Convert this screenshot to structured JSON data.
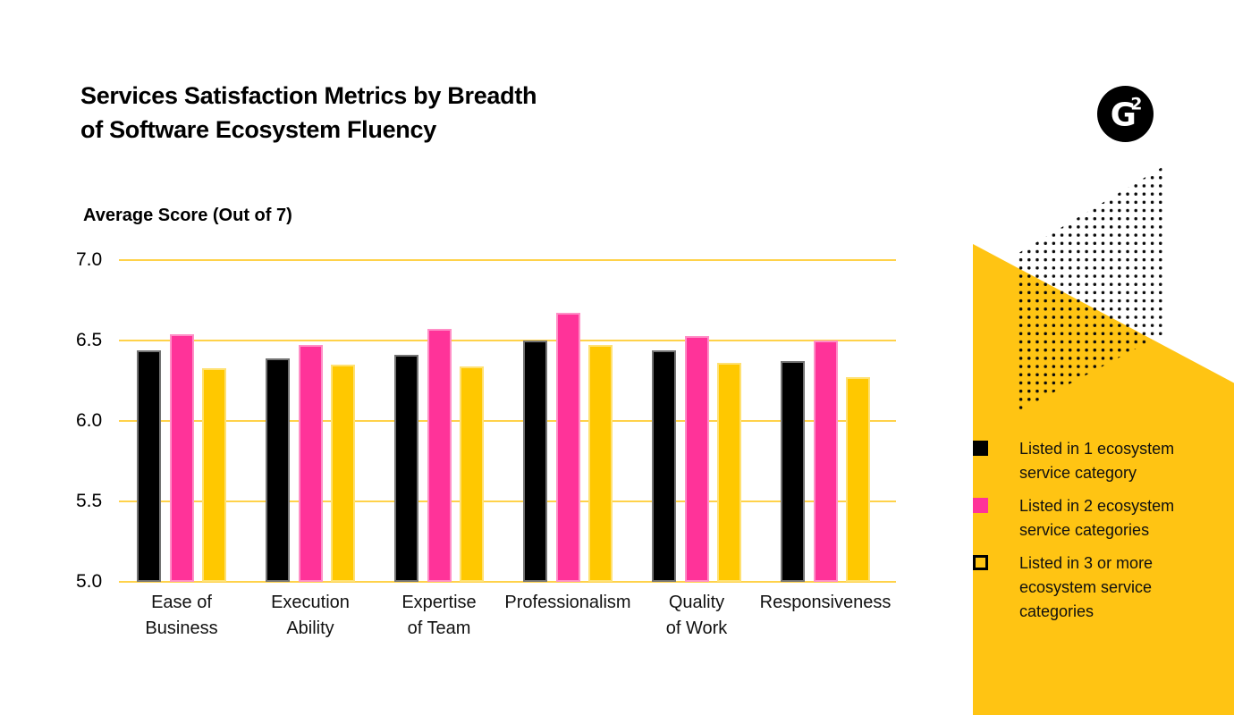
{
  "title": "Services Satisfaction Metrics by Breadth\nof Software Ecosystem Fluency",
  "axis_title": "Average Score (Out of 7)",
  "logo": {
    "label": "G2 logo",
    "letter": "G",
    "superscript": "2"
  },
  "chart_data": {
    "type": "bar",
    "title": "Services Satisfaction Metrics by Breadth of Software Ecosystem Fluency",
    "ylabel": "Average Score (Out of 7)",
    "ylim": [
      5.0,
      7.0
    ],
    "yticks": [
      7.0,
      6.5,
      6.0,
      5.5,
      5.0
    ],
    "grid": true,
    "legend_position": "right",
    "categories": [
      "Ease of Business",
      "Execution Ability",
      "Expertise of Team",
      "Professionalism",
      "Quality of Work",
      "Responsiveness"
    ],
    "categories_wrapped": [
      "Ease of\nBusiness",
      "Execution\nAbility",
      "Expertise\nof Team",
      "Professionalism",
      "Quality\nof Work",
      "Responsiveness"
    ],
    "series": [
      {
        "name": "Listed in 1 ecosystem service category",
        "color": "#000000",
        "values": [
          6.44,
          6.39,
          6.41,
          6.5,
          6.44,
          6.37
        ]
      },
      {
        "name": "Listed in 2 ecosystem service categories",
        "color": "#FF3399",
        "values": [
          6.54,
          6.47,
          6.57,
          6.67,
          6.53,
          6.5
        ]
      },
      {
        "name": "Listed in 3 or more ecosystem service categories",
        "color": "#FFC800",
        "values": [
          6.33,
          6.35,
          6.34,
          6.47,
          6.36,
          6.27
        ]
      }
    ]
  },
  "legend": {
    "items": [
      {
        "label": "Listed in 1 ecosystem\nservice category",
        "swatch": "filled",
        "color": "#000000"
      },
      {
        "label": "Listed in 2 ecosystem\nservice categories",
        "swatch": "filled",
        "color": "#FF3399"
      },
      {
        "label": "Listed in 3 or more\necosystem service\ncategories",
        "swatch": "outline",
        "color": "#FFC800"
      }
    ]
  },
  "colors": {
    "bar_black": "#000000",
    "bar_pink": "#FF3399",
    "bar_yellow": "#FFC800",
    "gridline": "#FFD24A",
    "accent_shape": "#FFC413",
    "dots": "#0B0B0B",
    "background": "#FFFFFF"
  }
}
